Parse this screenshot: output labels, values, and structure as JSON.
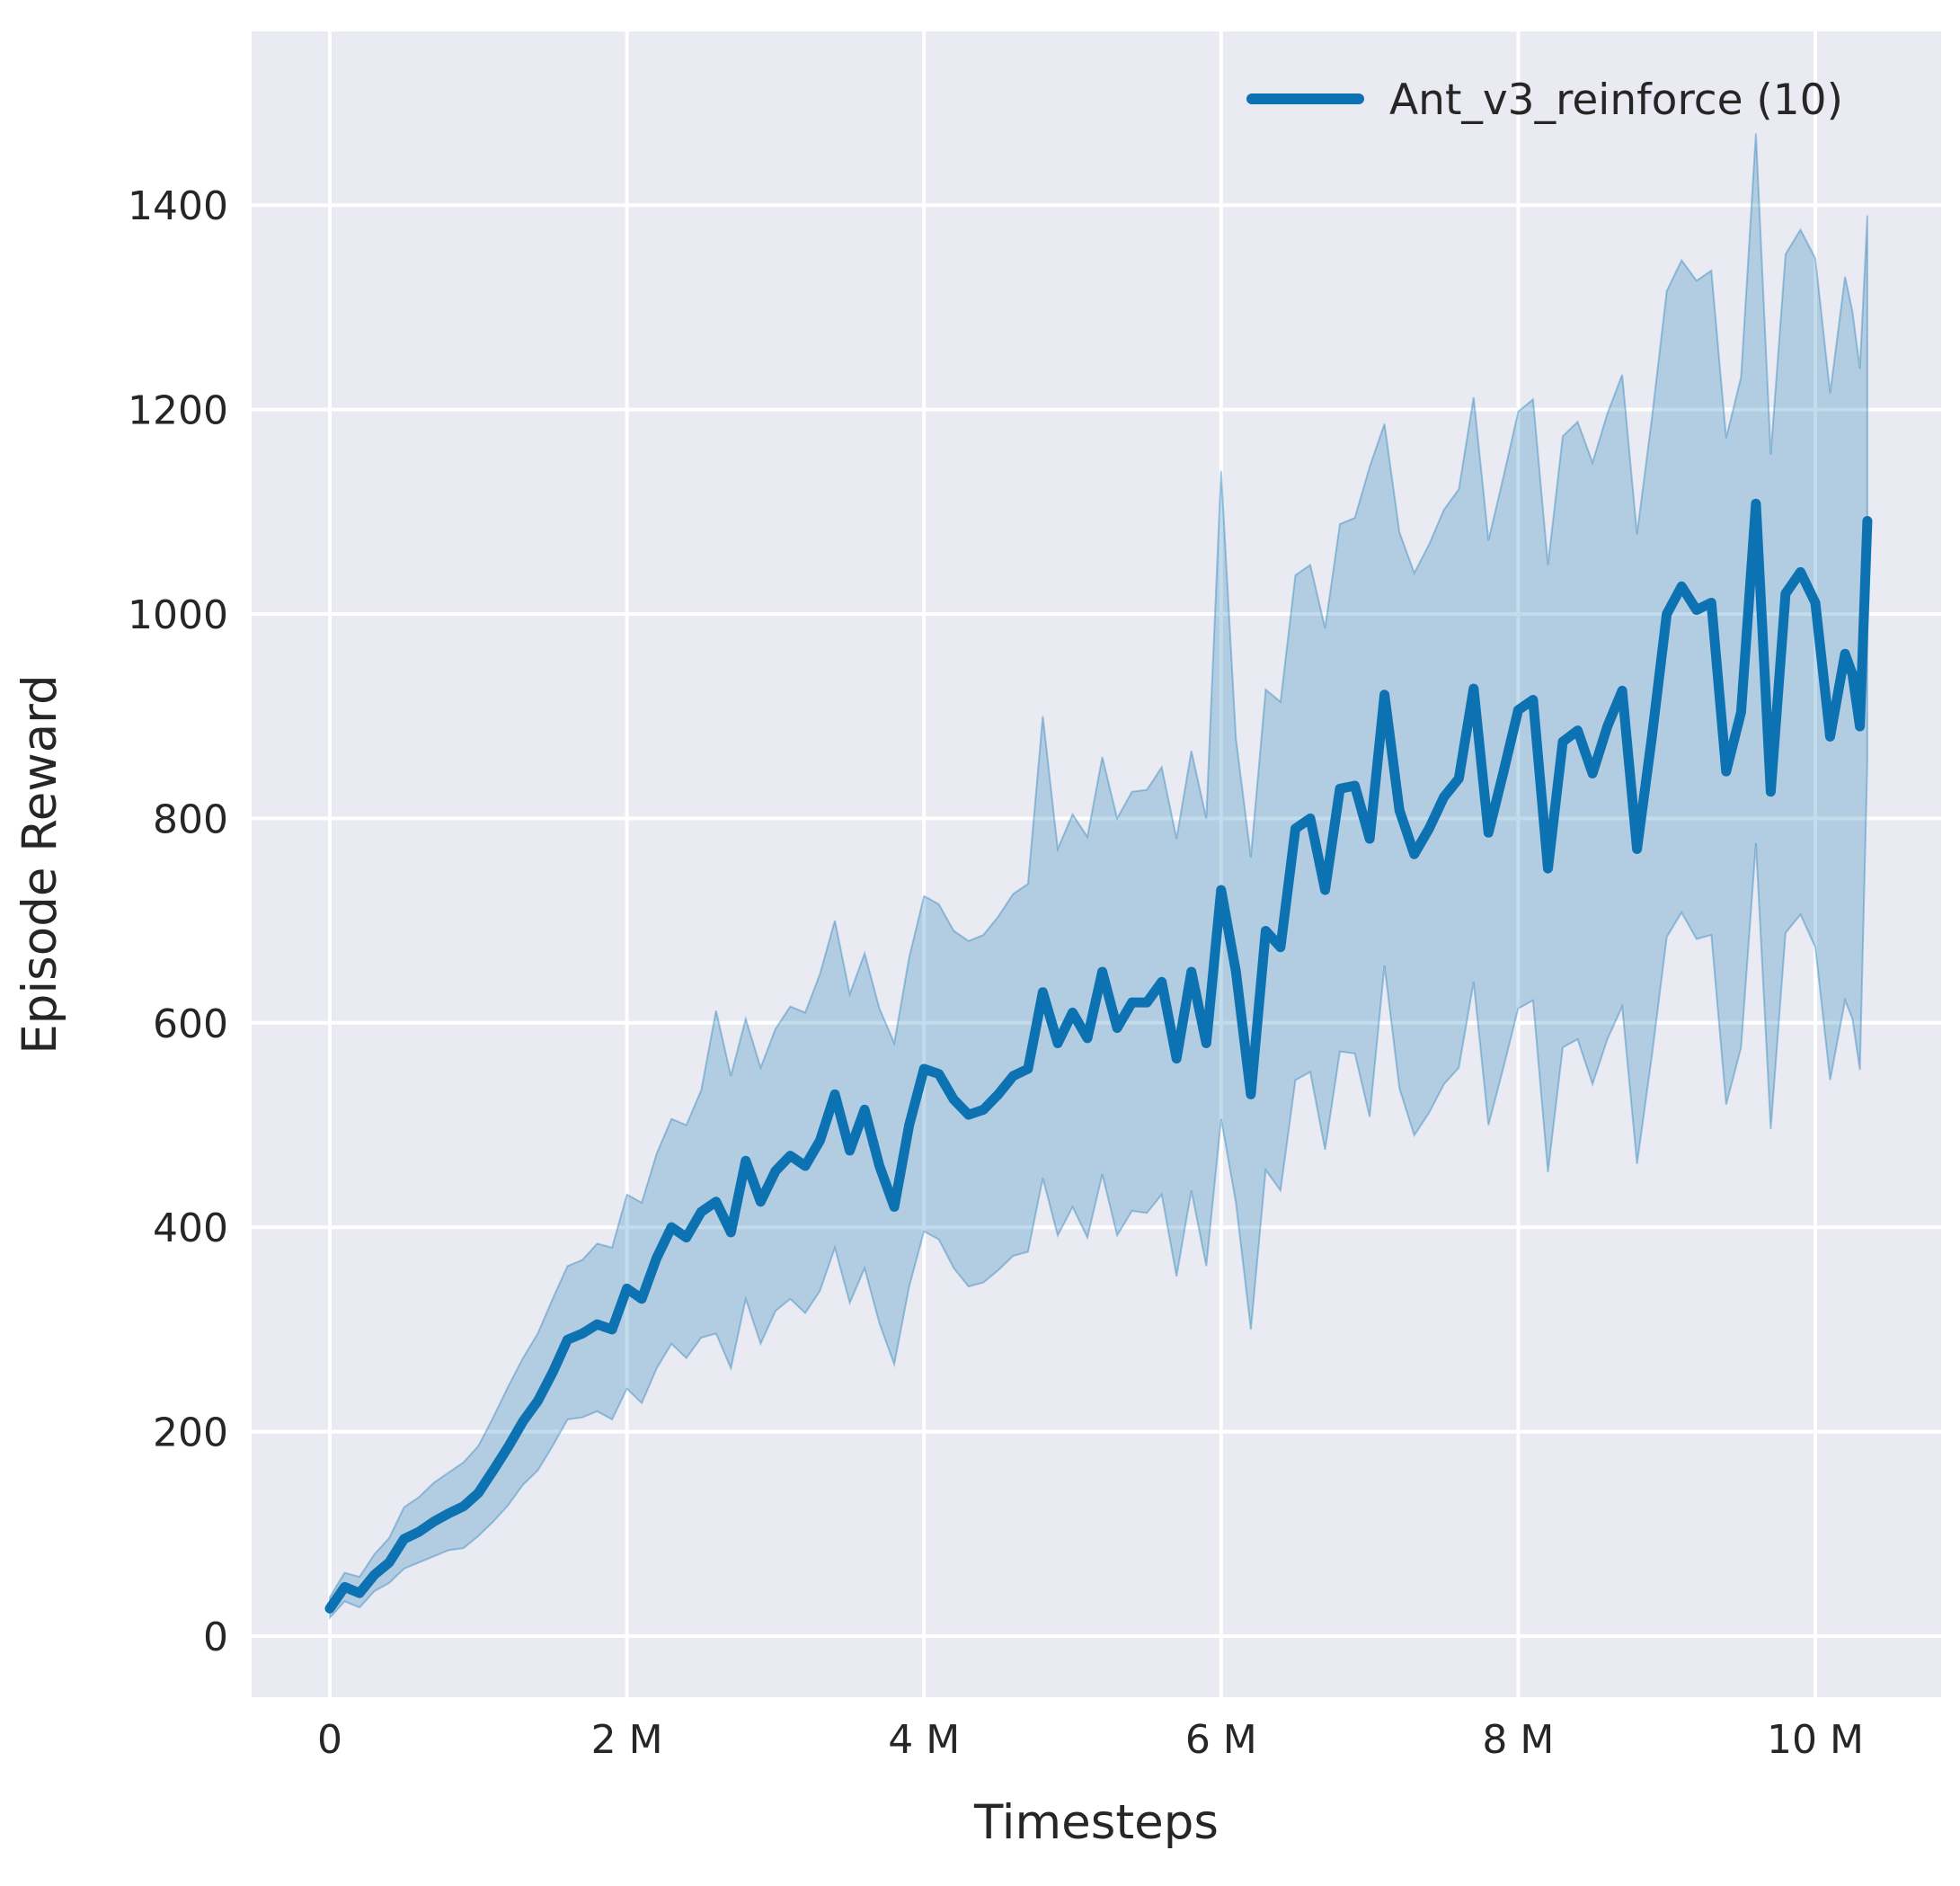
{
  "figure": {
    "background": "#ffffff",
    "axes_background": "#eaeaf2",
    "grid_color": "#ffffff",
    "text_color": "#262626",
    "line_color": "#0d72b2",
    "band_fill_opacity": 0.25,
    "band_edge_opacity": 0.35,
    "legend_position": "upper right",
    "legend_frame": false
  },
  "chart_data": {
    "type": "line",
    "title": "",
    "xlabel": "Timesteps",
    "ylabel": "Episode Reward",
    "x_unit": "millions of timesteps",
    "grid": true,
    "xlim_m": [
      -0.53,
      10.85
    ],
    "ylim": [
      -60,
      1570
    ],
    "x_ticks": [
      {
        "value": 0,
        "label": "0"
      },
      {
        "value": 2,
        "label": "2 M"
      },
      {
        "value": 4,
        "label": "4 M"
      },
      {
        "value": 6,
        "label": "6 M"
      },
      {
        "value": 8,
        "label": "8 M"
      },
      {
        "value": 10,
        "label": "10 M"
      }
    ],
    "y_ticks": [
      {
        "value": 0,
        "label": "0"
      },
      {
        "value": 200,
        "label": "200"
      },
      {
        "value": 400,
        "label": "400"
      },
      {
        "value": 600,
        "label": "600"
      },
      {
        "value": 800,
        "label": "800"
      },
      {
        "value": 1000,
        "label": "1000"
      },
      {
        "value": 1200,
        "label": "1200"
      },
      {
        "value": 1400,
        "label": "1400"
      }
    ],
    "series": [
      {
        "name": "Ant_v3_reinforce (10)",
        "x_m": [
          0,
          0.1,
          0.2,
          0.3,
          0.4,
          0.5,
          0.6,
          0.7,
          0.8,
          0.9,
          1.0,
          1.1,
          1.2,
          1.3,
          1.4,
          1.5,
          1.6,
          1.7,
          1.8,
          1.9,
          2.0,
          2.1,
          2.2,
          2.3,
          2.4,
          2.5,
          2.6,
          2.7,
          2.8,
          2.9,
          3.0,
          3.1,
          3.2,
          3.3,
          3.4,
          3.5,
          3.6,
          3.7,
          3.8,
          3.9,
          4.0,
          4.1,
          4.2,
          4.3,
          4.4,
          4.5,
          4.6,
          4.7,
          4.8,
          4.9,
          5.0,
          5.1,
          5.2,
          5.3,
          5.4,
          5.5,
          5.6,
          5.7,
          5.8,
          5.9,
          6.0,
          6.1,
          6.2,
          6.3,
          6.4,
          6.5,
          6.6,
          6.7,
          6.8,
          6.9,
          7.0,
          7.1,
          7.2,
          7.3,
          7.4,
          7.5,
          7.6,
          7.7,
          7.8,
          7.9,
          8.0,
          8.1,
          8.2,
          8.3,
          8.4,
          8.5,
          8.6,
          8.7,
          8.8,
          8.9,
          9.0,
          9.1,
          9.2,
          9.3,
          9.4,
          9.5,
          9.6,
          9.7,
          9.8,
          9.9,
          10.0,
          10.1,
          10.2,
          10.25,
          10.3,
          10.35
        ],
        "mean": [
          27,
          48,
          42,
          60,
          72,
          95,
          102,
          112,
          120,
          127,
          140,
          162,
          185,
          210,
          230,
          258,
          290,
          296,
          305,
          300,
          340,
          330,
          370,
          400,
          390,
          415,
          425,
          395,
          465,
          425,
          455,
          470,
          460,
          485,
          530,
          475,
          515,
          460,
          420,
          500,
          555,
          550,
          525,
          510,
          515,
          530,
          548,
          555,
          630,
          580,
          610,
          585,
          650,
          595,
          620,
          620,
          640,
          565,
          650,
          580,
          730,
          650,
          530,
          690,
          674,
          790,
          800,
          730,
          829,
          832,
          780,
          921,
          808,
          765,
          790,
          821,
          839,
          927,
          786,
          845,
          906,
          916,
          751,
          875,
          886,
          844,
          890,
          925,
          770,
          880,
          1000,
          1027,
          1004,
          1011,
          846,
          904,
          1108,
          826,
          1020,
          1041,
          1011,
          880,
          961,
          941,
          890,
          1091
        ],
        "band_low": [
          18,
          34,
          28,
          44,
          52,
          66,
          72,
          78,
          84,
          86,
          98,
          112,
          128,
          148,
          162,
          186,
          212,
          214,
          220,
          212,
          242,
          228,
          262,
          286,
          272,
          292,
          296,
          262,
          330,
          286,
          318,
          330,
          316,
          338,
          380,
          326,
          360,
          306,
          266,
          342,
          396,
          388,
          360,
          342,
          346,
          358,
          372,
          376,
          448,
          392,
          420,
          390,
          452,
          392,
          416,
          414,
          432,
          352,
          436,
          362,
          506,
          424,
          300,
          456,
          436,
          544,
          552,
          476,
          572,
          570,
          508,
          656,
          536,
          490,
          512,
          540,
          556,
          640,
          500,
          556,
          614,
          622,
          454,
          576,
          584,
          540,
          584,
          616,
          462,
          568,
          684,
          708,
          682,
          686,
          520,
          576,
          776,
          496,
          688,
          706,
          674,
          544,
          622,
          604,
          554,
          856
        ],
        "band_high": [
          38,
          62,
          58,
          80,
          96,
          126,
          136,
          150,
          160,
          170,
          186,
          214,
          244,
          272,
          296,
          330,
          362,
          368,
          384,
          380,
          432,
          424,
          472,
          506,
          500,
          534,
          612,
          548,
          604,
          556,
          594,
          616,
          610,
          648,
          700,
          628,
          668,
          614,
          580,
          664,
          724,
          716,
          690,
          680,
          686,
          704,
          726,
          736,
          900,
          770,
          804,
          782,
          860,
          800,
          826,
          828,
          850,
          780,
          866,
          800,
          1140,
          878,
          762,
          926,
          914,
          1038,
          1048,
          986,
          1088,
          1094,
          1144,
          1186,
          1080,
          1040,
          1068,
          1102,
          1122,
          1212,
          1072,
          1134,
          1198,
          1210,
          1048,
          1174,
          1188,
          1148,
          1196,
          1234,
          1078,
          1192,
          1316,
          1346,
          1326,
          1336,
          1172,
          1232,
          1470,
          1156,
          1352,
          1376,
          1348,
          1216,
          1330,
          1296,
          1240,
          1390
        ]
      }
    ]
  }
}
